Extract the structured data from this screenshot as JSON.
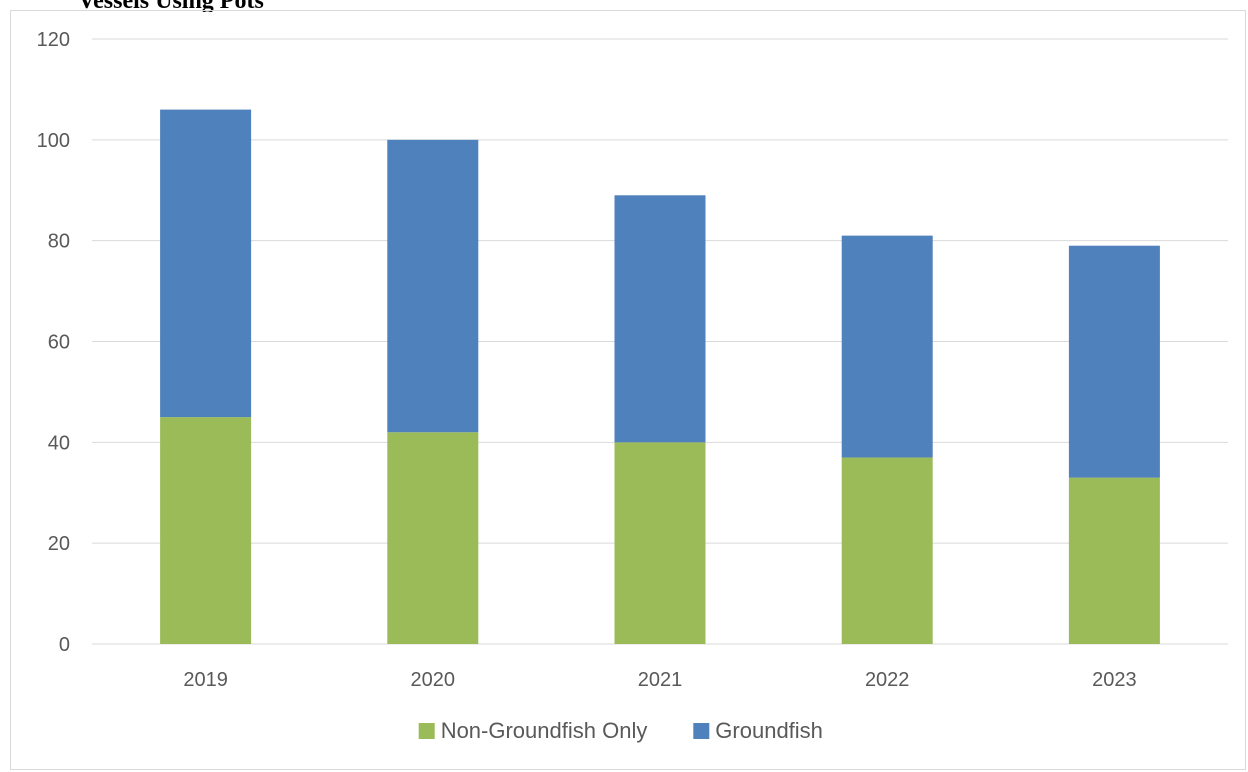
{
  "clipped_heading": "Vessels Using Pots",
  "chart_data": {
    "type": "bar",
    "stacked": true,
    "categories": [
      "2019",
      "2020",
      "2021",
      "2022",
      "2023"
    ],
    "series": [
      {
        "name": "Non-Groundfish Only",
        "values": [
          45,
          42,
          40,
          37,
          33
        ],
        "color": "#9bbb59"
      },
      {
        "name": "Groundfish",
        "values": [
          61,
          58,
          49,
          44,
          46
        ],
        "color": "#4f81bd"
      }
    ],
    "yticks": [
      0,
      20,
      40,
      60,
      80,
      100,
      120
    ],
    "ylim": [
      0,
      120
    ],
    "grid": true,
    "legend": "bottom",
    "title": "",
    "xlabel": "",
    "ylabel": ""
  }
}
